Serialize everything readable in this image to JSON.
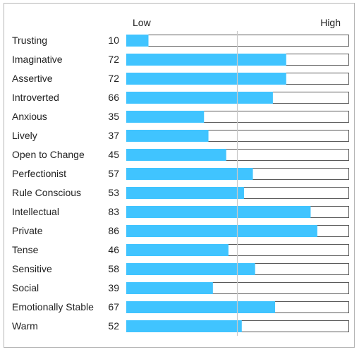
{
  "chart_data": {
    "type": "bar",
    "orientation": "horizontal",
    "scale_labels": {
      "low": "Low",
      "high": "High"
    },
    "xlim": [
      0,
      100
    ],
    "reference_line": 50,
    "bar_color": "#40c4ff",
    "track_border_color": "#5a5a5a",
    "categories": [
      "Trusting",
      "Imaginative",
      "Assertive",
      "Introverted",
      "Anxious",
      "Lively",
      "Open to Change",
      "Perfectionist",
      "Rule Conscious",
      "Intellectual",
      "Private",
      "Tense",
      "Sensitive",
      "Social",
      "Emotionally Stable",
      "Warm"
    ],
    "values": [
      10,
      72,
      72,
      66,
      35,
      37,
      45,
      57,
      53,
      83,
      86,
      46,
      58,
      39,
      67,
      52
    ]
  }
}
